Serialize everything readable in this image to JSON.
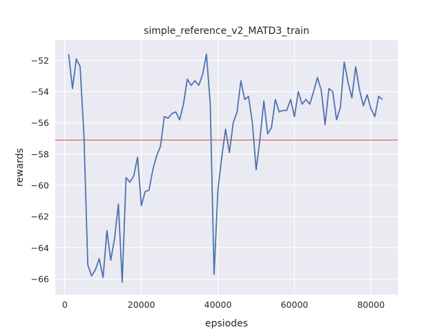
{
  "chart_data": {
    "type": "line",
    "title": "simple_reference_v2_MATD3_train",
    "xlabel": "epsiodes",
    "ylabel": "rewards",
    "xlim": [
      -2500,
      87000
    ],
    "ylim": [
      -67.0,
      -50.7
    ],
    "x_ticks": [
      0,
      20000,
      40000,
      60000,
      80000
    ],
    "x_tick_labels": [
      "0",
      "20000",
      "40000",
      "60000",
      "80000"
    ],
    "y_ticks": [
      -66,
      -64,
      -62,
      -60,
      -58,
      -56,
      -54,
      -52
    ],
    "y_tick_labels": [
      "−66",
      "−64",
      "−62",
      "−60",
      "−58",
      "−56",
      "−54",
      "−52"
    ],
    "grid": true,
    "background": "#eaeaf2",
    "series": [
      {
        "color": "#4c72b0",
        "x": [
          1000,
          2000,
          3000,
          4000,
          5000,
          6000,
          7000,
          8000,
          9000,
          10000,
          11000,
          12000,
          13000,
          14000,
          15000,
          16000,
          17000,
          18000,
          19000,
          20000,
          21000,
          22000,
          23000,
          24000,
          25000,
          26000,
          27000,
          28000,
          29000,
          30000,
          31000,
          32000,
          33000,
          34000,
          35000,
          36000,
          37000,
          38000,
          39000,
          40000,
          41000,
          42000,
          43000,
          44000,
          45000,
          46000,
          47000,
          48000,
          49000,
          50000,
          51000,
          52000,
          53000,
          54000,
          55000,
          56000,
          57000,
          58000,
          59000,
          60000,
          61000,
          62000,
          63000,
          64000,
          65000,
          66000,
          67000,
          68000,
          69000,
          70000,
          71000,
          72000,
          73000,
          74000,
          75000,
          76000,
          77000,
          78000,
          79000,
          80000,
          81000,
          82000,
          83000
        ],
        "y": [
          -51.6,
          -53.8,
          -51.9,
          -52.4,
          -56.8,
          -65.1,
          -65.8,
          -65.4,
          -64.7,
          -65.9,
          -62.9,
          -64.8,
          -63.4,
          -61.2,
          -66.2,
          -59.5,
          -59.8,
          -59.4,
          -58.2,
          -61.3,
          -60.4,
          -60.3,
          -59.0,
          -58.1,
          -57.5,
          -55.6,
          -55.7,
          -55.4,
          -55.3,
          -55.8,
          -54.8,
          -53.2,
          -53.6,
          -53.3,
          -53.6,
          -52.9,
          -51.6,
          -54.8,
          -65.7,
          -60.3,
          -58.2,
          -56.4,
          -57.9,
          -56.0,
          -55.3,
          -53.3,
          -54.5,
          -54.3,
          -56.0,
          -59.0,
          -57.0,
          -54.6,
          -56.7,
          -56.3,
          -54.5,
          -55.3,
          -55.2,
          -55.2,
          -54.5,
          -55.6,
          -54.0,
          -54.8,
          -54.5,
          -54.8,
          -54.0,
          -53.1,
          -53.9,
          -56.1,
          -53.8,
          -54.0,
          -55.8,
          -55.0,
          -52.1,
          -53.4,
          -54.4,
          -52.4,
          -53.9,
          -54.9,
          -54.2,
          -55.1,
          -55.6,
          -54.3,
          -54.5
        ]
      }
    ],
    "reference_line": {
      "y": -57.1,
      "color": "#e8423f"
    }
  }
}
